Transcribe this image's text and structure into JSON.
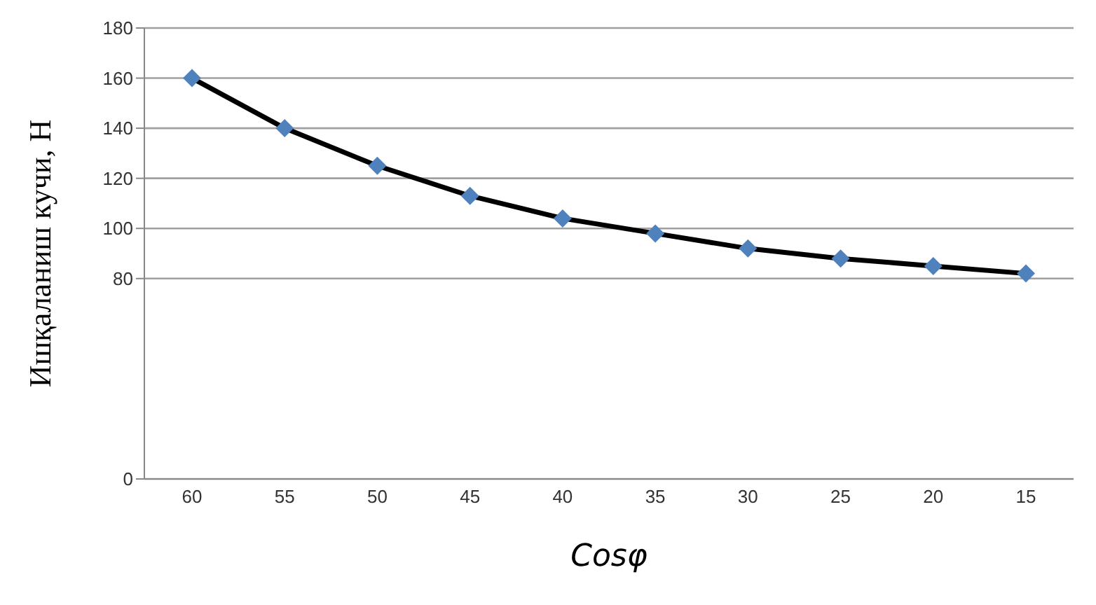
{
  "chart_data": {
    "type": "line",
    "xlabel": "Cosφ",
    "ylabel": "Ишқаланиш кучи, Н",
    "categories": [
      "60",
      "55",
      "50",
      "45",
      "40",
      "35",
      "30",
      "25",
      "20",
      "15"
    ],
    "series": [
      {
        "color": "#000000",
        "colors": [
          "#4f81bd",
          "#4f81bd",
          "#4f81bd",
          "#4f81bd",
          "#4f81bd",
          "#4f81bd",
          "#4f81bd",
          "#4f81bd",
          "#4f81bd",
          "#4f81bd"
        ],
        "values": [
          160,
          140,
          125,
          113,
          104,
          98,
          92,
          88,
          85,
          82
        ]
      }
    ],
    "ylim": [
      0,
      180
    ],
    "yticks": [
      0,
      80,
      100,
      120,
      140,
      160,
      180
    ],
    "grid": "y",
    "marker": "diamond",
    "line_style": "solid"
  }
}
